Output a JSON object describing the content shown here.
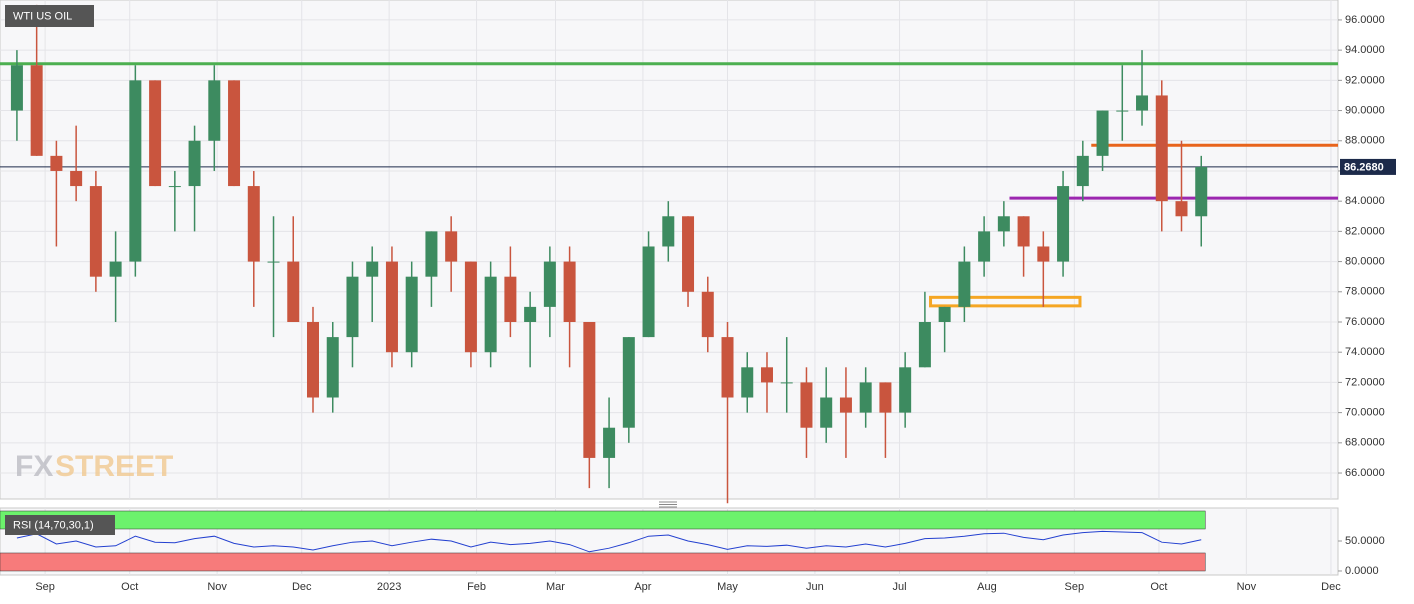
{
  "chart_data": {
    "type": "candlestick",
    "title": "WTI US OIL",
    "watermark": [
      "FX",
      "STREET"
    ],
    "x": [
      -10,
      -3,
      4,
      11,
      18,
      25,
      32,
      39,
      46,
      53,
      60,
      67,
      74,
      81,
      88,
      95,
      102,
      109,
      116,
      123,
      130,
      137,
      144,
      151,
      158,
      165,
      172,
      179,
      186,
      193,
      200,
      207,
      214,
      221,
      228,
      235,
      242,
      249,
      256,
      263,
      270,
      277,
      284,
      291,
      298,
      305,
      312,
      319,
      326,
      333,
      340,
      347,
      354,
      361,
      368,
      375,
      382,
      389,
      396,
      403,
      410
    ],
    "open": [
      90,
      93,
      87,
      86,
      85,
      79,
      80,
      92,
      85,
      85,
      88,
      92,
      85,
      80,
      80,
      76,
      71,
      75,
      79,
      80,
      74,
      79,
      82,
      80,
      74,
      79,
      76,
      77,
      80,
      76,
      67,
      69,
      75,
      81,
      83,
      78,
      75,
      71,
      73,
      72,
      72,
      69,
      71,
      70,
      72,
      70,
      73,
      76,
      77,
      80,
      82,
      83,
      81,
      80,
      85,
      87,
      90,
      90,
      91,
      84,
      83
    ],
    "high": [
      94,
      97,
      88,
      89,
      86,
      82,
      93,
      92,
      86,
      89,
      93,
      92,
      86,
      83,
      83,
      77,
      76,
      80,
      81,
      81,
      80,
      82,
      83,
      80,
      80,
      81,
      78,
      81,
      81,
      76,
      71,
      75,
      82,
      84,
      83,
      79,
      76,
      74,
      74,
      75,
      73,
      73,
      73,
      73,
      72,
      74,
      78,
      77,
      81,
      83,
      84,
      83,
      82,
      86,
      88,
      90,
      93,
      94,
      92,
      88,
      87
    ],
    "low": [
      88,
      87,
      81,
      84,
      78,
      76,
      79,
      85,
      82,
      82,
      86,
      85,
      77,
      75,
      76,
      70,
      70,
      73,
      76,
      73,
      73,
      77,
      78,
      73,
      73,
      75,
      73,
      75,
      73,
      65,
      65,
      68,
      75,
      80,
      77,
      74,
      64,
      70,
      70,
      70,
      67,
      68,
      67,
      69,
      67,
      69,
      73,
      74,
      76,
      79,
      81,
      79,
      77,
      79,
      84,
      86,
      88,
      89,
      82,
      82,
      81
    ],
    "close": [
      93,
      87,
      86,
      85,
      79,
      80,
      92,
      85,
      85,
      88,
      92,
      85,
      80,
      80,
      76,
      71,
      75,
      79,
      80,
      74,
      79,
      82,
      80,
      74,
      79,
      76,
      77,
      80,
      76,
      67,
      69,
      75,
      81,
      83,
      78,
      75,
      71,
      73,
      72,
      72,
      69,
      71,
      70,
      72,
      70,
      73,
      76,
      77,
      80,
      82,
      83,
      81,
      80,
      85,
      87,
      90,
      90,
      91,
      84,
      83,
      86.27
    ],
    "up_color": "#3d8b60",
    "down_color": "#c9553e",
    "xlim": [
      -16,
      458.5
    ],
    "xticks": [
      {
        "value": 0,
        "label": "Sep"
      },
      {
        "value": 30,
        "label": "Oct"
      },
      {
        "value": 61,
        "label": "Nov"
      },
      {
        "value": 91,
        "label": "Dec"
      },
      {
        "value": 122,
        "label": "2023"
      },
      {
        "value": 153,
        "label": "Feb"
      },
      {
        "value": 181,
        "label": "Mar"
      },
      {
        "value": 212,
        "label": "Apr"
      },
      {
        "value": 242,
        "label": "May"
      },
      {
        "value": 273,
        "label": "Jun"
      },
      {
        "value": 303,
        "label": "Jul"
      },
      {
        "value": 334,
        "label": "Aug"
      },
      {
        "value": 365,
        "label": "Sep"
      },
      {
        "value": 395,
        "label": "Oct"
      },
      {
        "value": 426,
        "label": "Nov"
      },
      {
        "value": 456,
        "label": "Dec"
      }
    ],
    "ylim": [
      64.28,
      97.32
    ],
    "yticks": [
      {
        "value": 66,
        "label": "66.0000"
      },
      {
        "value": 68,
        "label": "68.0000"
      },
      {
        "value": 70,
        "label": "70.0000"
      },
      {
        "value": 72,
        "label": "72.0000"
      },
      {
        "value": 74,
        "label": "74.0000"
      },
      {
        "value": 76,
        "label": "76.0000"
      },
      {
        "value": 78,
        "label": "78.0000"
      },
      {
        "value": 80,
        "label": "80.0000"
      },
      {
        "value": 82,
        "label": "82.0000"
      },
      {
        "value": 84,
        "label": "84.0000"
      },
      {
        "value": 86,
        "label": "86.0000"
      },
      {
        "value": 88,
        "label": "88.0000"
      },
      {
        "value": 90,
        "label": "90.0000"
      },
      {
        "value": 92,
        "label": "92.0000"
      },
      {
        "value": 94,
        "label": "94.0000"
      },
      {
        "value": 96,
        "label": "96.0000"
      }
    ],
    "grid": true,
    "last_price": {
      "value": 86.268,
      "label": "86.2680",
      "color": "#1c2a4a"
    },
    "levels": [
      {
        "value": 93.1,
        "from": -16,
        "to": 458.5,
        "color": "#4caf50"
      },
      {
        "value": 87.7,
        "from": 371,
        "to": 458.5,
        "color": "#e8641c"
      },
      {
        "value": 84.2,
        "from": 342,
        "to": 458.5,
        "color": "#9c27b0"
      }
    ],
    "boxes": [
      {
        "low": 77.2,
        "high": 77.5,
        "from": 314,
        "to": 367,
        "color": "#f5a623"
      }
    ],
    "rsi": {
      "title": "RSI (14,70,30,1)",
      "color": "#2340d0",
      "values": [
        55,
        62,
        45,
        50,
        40,
        42,
        58,
        48,
        47,
        54,
        58,
        46,
        40,
        42,
        40,
        35,
        42,
        48,
        50,
        42,
        48,
        53,
        50,
        40,
        48,
        44,
        46,
        50,
        44,
        32,
        38,
        47,
        58,
        60,
        50,
        44,
        36,
        42,
        41,
        43,
        38,
        42,
        40,
        45,
        40,
        46,
        54,
        55,
        58,
        62,
        63,
        56,
        52,
        60,
        64,
        66,
        65,
        64,
        48,
        45,
        52
      ],
      "ylim": [
        -6.7,
        105
      ],
      "yticks": [
        {
          "value": 0,
          "label": "0.0000"
        },
        {
          "value": 50,
          "label": "50.0000"
        }
      ],
      "bands": [
        {
          "from": 70,
          "to": 100,
          "color": "#6cf26c"
        },
        {
          "from": 0,
          "to": 30,
          "color": "#f77b7b"
        }
      ]
    }
  }
}
